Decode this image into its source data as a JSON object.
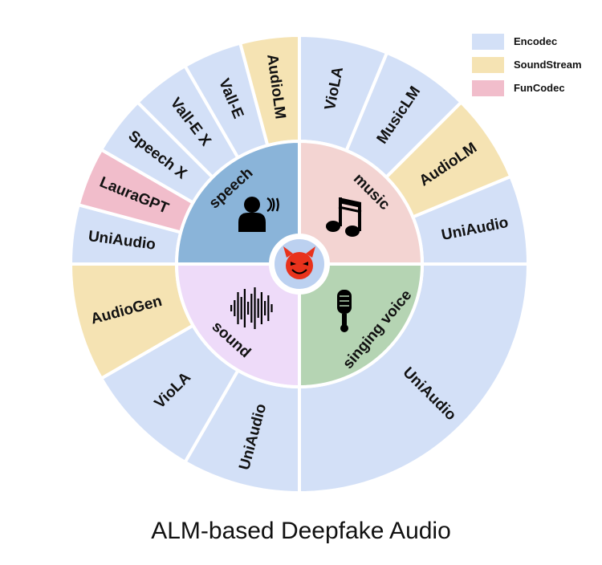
{
  "colors": {
    "encodec": "#d3e0f7",
    "soundstream": "#f5e3b3",
    "funcodec": "#f1bdcb",
    "speech": "#8ab4d9",
    "music": "#f3d4d2",
    "sound": "#eedbf9",
    "singing_voice": "#b5d4b3",
    "center": "#bcd1f0",
    "devil": "#e8321c"
  },
  "legend": {
    "items": [
      {
        "label": "Encodec",
        "codec": "encodec"
      },
      {
        "label": "SoundStream",
        "codec": "soundstream"
      },
      {
        "label": "FunCodec",
        "codec": "funcodec"
      }
    ]
  },
  "center": {
    "icon": "devil-icon"
  },
  "categories": [
    {
      "label": "speech",
      "color": "speech",
      "icon": "speaking-person-icon",
      "models": [
        {
          "label": "UniAudio",
          "codec": "encodec"
        },
        {
          "label": "LauraGPT",
          "codec": "funcodec"
        },
        {
          "label": "Speech X",
          "codec": "encodec"
        },
        {
          "label": "Vall-E X",
          "codec": "encodec"
        },
        {
          "label": "Vall-E",
          "codec": "encodec"
        },
        {
          "label": "AudioLM",
          "codec": "soundstream"
        }
      ]
    },
    {
      "label": "music",
      "color": "music",
      "icon": "music-note-icon",
      "models": [
        {
          "label": "VioLA",
          "codec": "encodec"
        },
        {
          "label": "MusicLM",
          "codec": "encodec"
        },
        {
          "label": "AudioLM",
          "codec": "soundstream"
        },
        {
          "label": "UniAudio",
          "codec": "encodec"
        }
      ]
    },
    {
      "label": "singing voice",
      "color": "singing_voice",
      "icon": "microphone-icon",
      "models": [
        {
          "label": "UniAudio",
          "codec": "encodec"
        }
      ]
    },
    {
      "label": "sound",
      "color": "sound",
      "icon": "sound-wave-icon",
      "models": [
        {
          "label": "UniAudio",
          "codec": "encodec"
        },
        {
          "label": "VioLA",
          "codec": "encodec"
        },
        {
          "label": "AudioGen",
          "codec": "soundstream"
        }
      ]
    }
  ],
  "caption": "ALM-based Deepfake Audio"
}
